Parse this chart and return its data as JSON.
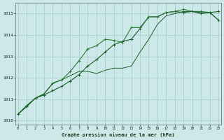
{
  "title": "Graphe pression niveau de la mer (hPa)",
  "bg_color": "#cce8e8",
  "grid_color": "#aacfcf",
  "line_color_dark": "#1a5c2a",
  "line_color_mid": "#2d7a3a",
  "x_ticks": [
    0,
    1,
    2,
    3,
    4,
    5,
    6,
    7,
    8,
    9,
    10,
    11,
    12,
    13,
    14,
    15,
    16,
    17,
    18,
    19,
    20,
    21,
    22,
    23
  ],
  "ylim": [
    1009.8,
    1015.5
  ],
  "yticks": [
    1010,
    1011,
    1012,
    1013,
    1014,
    1015
  ],
  "series1": [
    1010.3,
    1010.65,
    1011.05,
    1011.2,
    1011.4,
    1011.6,
    1011.85,
    1012.15,
    1012.55,
    1012.85,
    1013.2,
    1013.55,
    1013.7,
    1013.8,
    1014.3,
    1014.85,
    1014.85,
    1015.05,
    1015.1,
    1015.05,
    1015.1,
    1015.0,
    1015.05,
    1015.1
  ],
  "series2": [
    1010.3,
    1010.7,
    1011.05,
    1011.25,
    1011.75,
    1011.9,
    1012.3,
    1012.8,
    1013.35,
    1013.5,
    1013.8,
    1013.75,
    1013.65,
    1014.35,
    1014.35,
    1014.85,
    1014.85,
    1015.05,
    1015.1,
    1015.2,
    1015.1,
    1015.1,
    1015.05,
    1014.7
  ],
  "series3": [
    1010.3,
    1010.7,
    1011.05,
    1011.25,
    1011.75,
    1011.9,
    1012.1,
    1012.3,
    1012.3,
    1012.2,
    1012.35,
    1012.45,
    1012.45,
    1012.55,
    1013.2,
    1013.8,
    1014.5,
    1014.9,
    1015.0,
    1015.1,
    1015.1,
    1015.05,
    1015.05,
    1014.7
  ]
}
